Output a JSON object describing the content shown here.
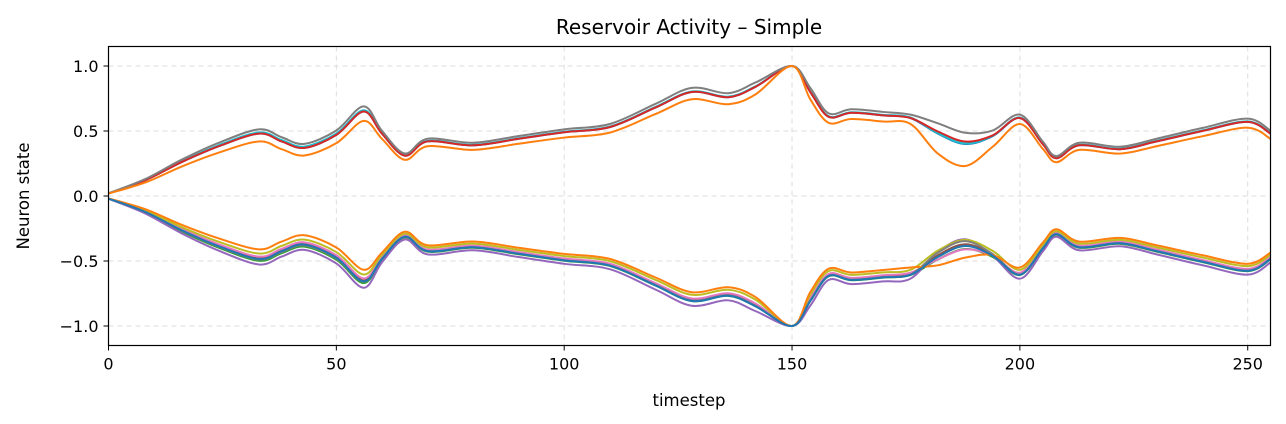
{
  "chart_data": {
    "type": "line",
    "title": "Reservoir Activity – Simple",
    "xlabel": "timestep",
    "ylabel": "Neuron state",
    "xlim": [
      0,
      255
    ],
    "ylim": [
      -1.15,
      1.15
    ],
    "xticks": [
      0,
      50,
      100,
      150,
      200,
      250
    ],
    "xtick_labels": [
      "0",
      "50",
      "100",
      "150",
      "200",
      "250"
    ],
    "yticks": [
      1.0,
      0.5,
      0.0,
      -0.5,
      -1.0
    ],
    "ytick_labels": [
      "1.0",
      "0.5",
      "0.0",
      "−0.5",
      "−1.0"
    ],
    "grid": true,
    "legend": "none",
    "base_curve": {
      "x": [
        0,
        8,
        16,
        24,
        33,
        38,
        43,
        50,
        56,
        60,
        65,
        70,
        80,
        90,
        100,
        110,
        120,
        128,
        136,
        142,
        150,
        154,
        158,
        163,
        170,
        176,
        182,
        188,
        194,
        200,
        205,
        208,
        213,
        222,
        230,
        240,
        250,
        255
      ],
      "y": [
        0.02,
        0.12,
        0.26,
        0.38,
        0.48,
        0.42,
        0.37,
        0.47,
        0.65,
        0.48,
        0.31,
        0.42,
        0.39,
        0.44,
        0.49,
        0.53,
        0.68,
        0.8,
        0.76,
        0.84,
        1.0,
        0.8,
        0.61,
        0.64,
        0.62,
        0.6,
        0.48,
        0.4,
        0.46,
        0.6,
        0.4,
        0.29,
        0.39,
        0.36,
        0.42,
        0.5,
        0.57,
        0.48
      ]
    },
    "series": [
      {
        "color": "#1f77b4",
        "sign": 1,
        "shift": 0.0,
        "scale": 1.0,
        "dip": 0.0
      },
      {
        "color": "#17becf",
        "sign": 1,
        "shift": 0.01,
        "scale": 1.0,
        "dip": 0.0
      },
      {
        "color": "#d62728",
        "sign": 1,
        "shift": 0.0,
        "scale": 1.0,
        "dip": 0.02
      },
      {
        "color": "#7f7f7f",
        "sign": 1,
        "shift": 0.02,
        "scale": 1.03,
        "dip": 0.07
      },
      {
        "color": "#ff7f0e",
        "sign": 1,
        "shift": -0.04,
        "scale": 0.95,
        "dip": -0.14
      },
      {
        "color": "#2ca02c",
        "sign": -1,
        "shift": 0.02,
        "scale": 1.0,
        "dip": 0.0
      },
      {
        "color": "#9467bd",
        "sign": -1,
        "shift": 0.03,
        "scale": 1.04,
        "dip": -0.1
      },
      {
        "color": "#8c564b",
        "sign": -1,
        "shift": 0.0,
        "scale": 1.0,
        "dip": -0.03
      },
      {
        "color": "#e377c2",
        "sign": -1,
        "shift": -0.01,
        "scale": 0.99,
        "dip": 0.02
      },
      {
        "color": "#bcbd22",
        "sign": -1,
        "shift": -0.02,
        "scale": 0.96,
        "dip": -0.04
      },
      {
        "color": "#7f7f7f",
        "sign": -1,
        "shift": 0.01,
        "scale": 1.0,
        "dip": -0.06
      },
      {
        "color": "#ff7f0e",
        "sign": -1,
        "shift": -0.05,
        "scale": 0.95,
        "dip": 0.12
      },
      {
        "color": "#1f77b4",
        "sign": -1,
        "shift": 0.0,
        "scale": 1.01,
        "dip": -0.02
      }
    ]
  }
}
